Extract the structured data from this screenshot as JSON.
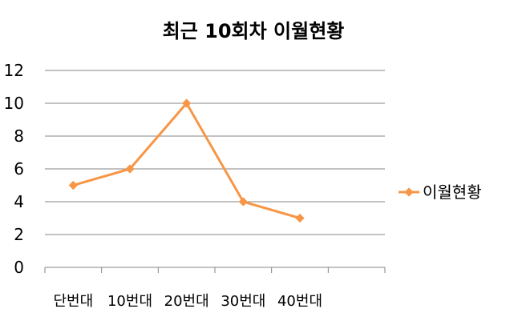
{
  "chart_data": {
    "type": "line",
    "title": "최근 10회차 이월현황",
    "categories": [
      "단번대",
      "10번대",
      "20번대",
      "30번대",
      "40번대",
      ""
    ],
    "series": [
      {
        "name": "이월현황",
        "values": [
          5,
          6,
          10,
          4,
          3,
          null
        ]
      }
    ],
    "xlabel": "",
    "ylabel": "",
    "ylim": [
      0,
      12
    ],
    "yticks": [
      "0",
      "2",
      "4",
      "6",
      "8",
      "10",
      "12"
    ],
    "grid": true,
    "legend_position": "right",
    "line_color": "#F79646",
    "grid_color": "#868686"
  }
}
